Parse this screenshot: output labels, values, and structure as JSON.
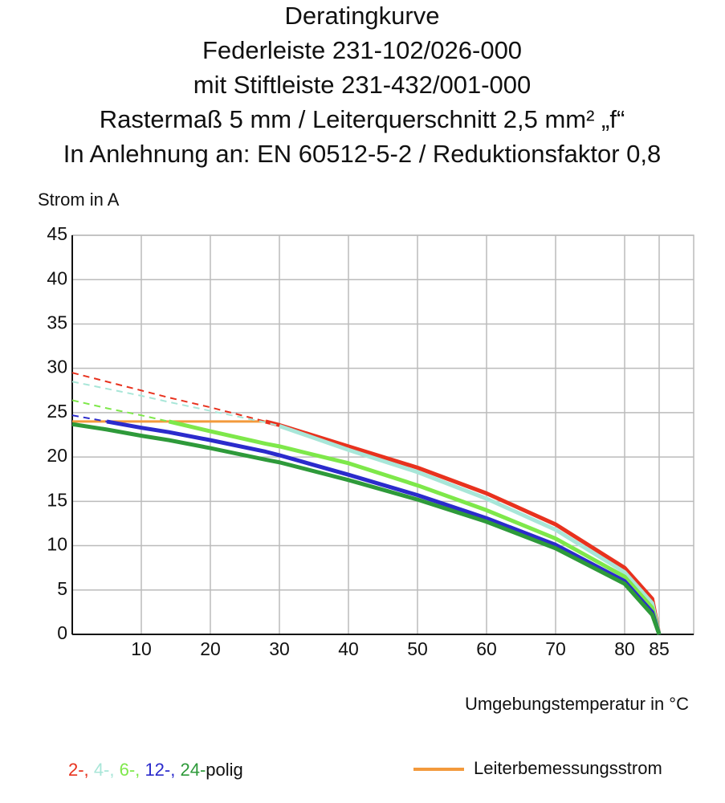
{
  "chart_data": {
    "type": "line",
    "title": [
      "Deratingkurve",
      "Federleiste 231-102/026-000",
      "mit Stiftleiste 231-432/001-000",
      "Rastermaß 5 mm / Leiterquerschnitt 2,5 mm² „f“",
      "In Anlehnung an: EN 60512-5-2 / Reduktionsfaktor 0,8"
    ],
    "y_label": "Strom in A",
    "x_label": "Umgebungstemperatur in °C",
    "xlim": [
      0,
      90
    ],
    "xticks": [
      10,
      20,
      30,
      40,
      50,
      60,
      70,
      80,
      85
    ],
    "ylim": [
      0,
      45
    ],
    "yticks": [
      0,
      5,
      10,
      15,
      20,
      25,
      30,
      35,
      40,
      45
    ],
    "grid": true,
    "x": [
      0,
      5,
      10,
      14,
      20,
      28,
      30,
      40,
      50,
      60,
      70,
      80,
      84,
      85
    ],
    "series": [
      {
        "name": "2-,",
        "color": "#e8321e",
        "values": [
          null,
          null,
          null,
          null,
          null,
          24.0,
          23.6,
          21.2,
          18.8,
          15.9,
          12.4,
          7.5,
          4.0,
          0
        ],
        "extrapolated_values": [
          29.5,
          28.5,
          27.5,
          26.7,
          25.6,
          24.0,
          null,
          null,
          null,
          null,
          null,
          null,
          null,
          null
        ]
      },
      {
        "name": "4-,",
        "color": "#a8e6d8",
        "values": [
          null,
          null,
          null,
          null,
          null,
          null,
          23.5,
          20.8,
          18.3,
          15.3,
          11.8,
          7.0,
          3.5,
          0
        ],
        "extrapolated_values": [
          28.5,
          27.7,
          26.9,
          26.2,
          25.2,
          23.9,
          23.5,
          null,
          null,
          null,
          null,
          null,
          null,
          null
        ]
      },
      {
        "name": "6-,",
        "color": "#7ee84a",
        "values": [
          null,
          null,
          null,
          24.0,
          22.9,
          21.5,
          21.2,
          19.3,
          16.8,
          14.0,
          10.8,
          6.5,
          3.0,
          0
        ],
        "extrapolated_values": [
          26.4,
          25.5,
          24.7,
          24.0,
          null,
          null,
          null,
          null,
          null,
          null,
          null,
          null,
          null,
          null
        ]
      },
      {
        "name": "12-,",
        "color": "#2b2bcc",
        "values": [
          null,
          24.0,
          23.3,
          22.8,
          21.9,
          20.6,
          20.2,
          18.0,
          15.7,
          13.1,
          10.1,
          6.0,
          2.5,
          0
        ],
        "extrapolated_values": [
          24.7,
          24.0,
          null,
          null,
          null,
          null,
          null,
          null,
          null,
          null,
          null,
          null,
          null,
          null
        ]
      },
      {
        "name": "24-",
        "color": "#2e9a3a",
        "values": [
          23.7,
          23.1,
          22.4,
          21.9,
          21.0,
          19.7,
          19.4,
          17.4,
          15.2,
          12.7,
          9.7,
          5.7,
          2.2,
          0
        ]
      }
    ],
    "legend_suffix": "polig",
    "reference_line": {
      "name": "Leiterbemessungsstrom",
      "color": "#f39a3c",
      "value": 24,
      "x": [
        0,
        28
      ]
    }
  }
}
